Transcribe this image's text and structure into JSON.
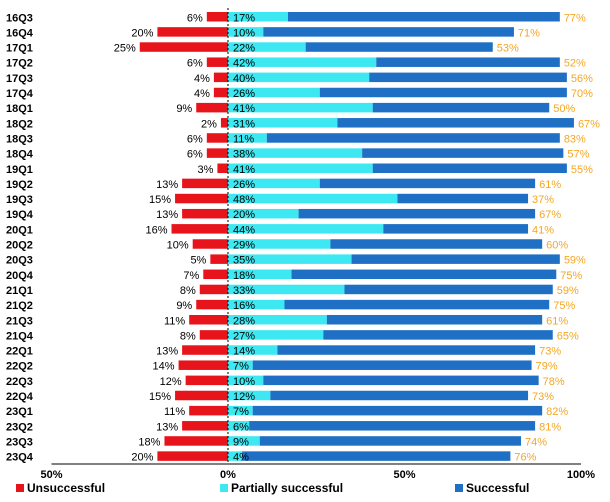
{
  "chart_data": {
    "type": "bar",
    "orientation": "horizontal",
    "stacked": true,
    "diverging": true,
    "title": "",
    "xlabel": "",
    "ylabel": "",
    "xlim": [
      -50,
      100
    ],
    "x_ticks": [
      {
        "value": -50,
        "label": "50%"
      },
      {
        "value": 0,
        "label": "0%"
      },
      {
        "value": 50,
        "label": "50%"
      },
      {
        "value": 100,
        "label": "100%"
      }
    ],
    "grid": false,
    "legend_position": "bottom",
    "categories": [
      "16Q3",
      "16Q4",
      "17Q1",
      "17Q2",
      "17Q3",
      "17Q4",
      "18Q1",
      "18Q2",
      "18Q3",
      "18Q4",
      "19Q1",
      "19Q2",
      "19Q3",
      "19Q4",
      "20Q1",
      "20Q2",
      "20Q3",
      "20Q4",
      "21Q1",
      "21Q2",
      "21Q3",
      "21Q4",
      "22Q1",
      "22Q2",
      "22Q3",
      "22Q4",
      "23Q1",
      "23Q2",
      "23Q3",
      "23Q4"
    ],
    "series": [
      {
        "name": "Unsuccessful",
        "color": "#e8141c",
        "direction": "negative",
        "values": [
          6,
          20,
          25,
          6,
          4,
          4,
          9,
          2,
          6,
          6,
          3,
          13,
          15,
          13,
          16,
          10,
          5,
          7,
          8,
          9,
          11,
          8,
          13,
          14,
          12,
          15,
          11,
          13,
          18,
          20
        ]
      },
      {
        "name": "Partially successful",
        "color": "#3ee8f2",
        "direction": "positive",
        "values": [
          17,
          10,
          22,
          42,
          40,
          26,
          41,
          31,
          11,
          38,
          41,
          26,
          48,
          20,
          44,
          29,
          35,
          18,
          33,
          16,
          28,
          27,
          14,
          7,
          10,
          12,
          7,
          6,
          9,
          4
        ]
      },
      {
        "name": "Successful",
        "color": "#1f6fc4",
        "direction": "positive",
        "values": [
          77,
          71,
          53,
          52,
          56,
          70,
          50,
          67,
          83,
          57,
          55,
          61,
          37,
          67,
          41,
          60,
          59,
          75,
          59,
          75,
          61,
          65,
          73,
          79,
          78,
          73,
          82,
          81,
          74,
          76
        ]
      }
    ],
    "value_labels": {
      "Unsuccessful": [
        "6%",
        "20%",
        "25%",
        "6%",
        "4%",
        "4%",
        "9%",
        "2%",
        "6%",
        "6%",
        "3%",
        "13%",
        "15%",
        "13%",
        "16%",
        "10%",
        "5%",
        "7%",
        "8%",
        "9%",
        "11%",
        "8%",
        "13%",
        "14%",
        "12%",
        "15%",
        "11%",
        "13%",
        "18%",
        "20%"
      ],
      "Partially successful": [
        "17%",
        "10%",
        "22%",
        "42%",
        "40%",
        "26%",
        "41%",
        "31%",
        "11%",
        "38%",
        "41%",
        "26%",
        "48%",
        "20%",
        "44%",
        "29%",
        "35%",
        "18%",
        "33%",
        "16%",
        "28%",
        "27%",
        "14%",
        "7%",
        "10%",
        "12%",
        "7%",
        "6%",
        "9%",
        "4%"
      ],
      "Successful": [
        "77%",
        "71%",
        "53%",
        "52%",
        "56%",
        "70%",
        "50%",
        "67%",
        "83%",
        "57%",
        "55%",
        "61%",
        "37%",
        "67%",
        "41%",
        "60%",
        "59%",
        "75%",
        "59%",
        "75%",
        "61%",
        "65%",
        "73%",
        "79%",
        "78%",
        "73%",
        "82%",
        "81%",
        "74%",
        "76%"
      ]
    },
    "colors": {
      "successful_label": "#f5a623",
      "axis": "#000000"
    }
  }
}
